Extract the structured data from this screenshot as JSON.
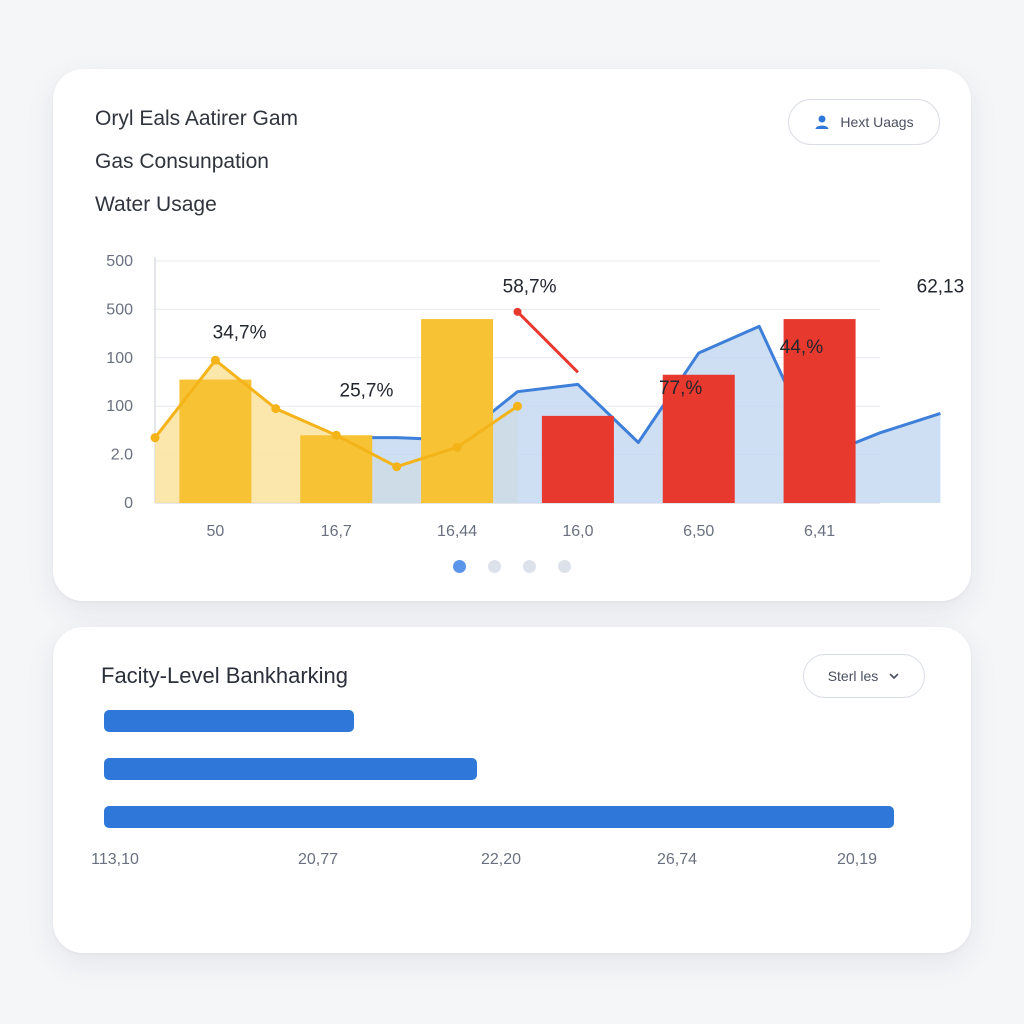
{
  "top_card": {
    "legend": [
      "Oryl Eals Aatirer Gam",
      "Gas Consunpation",
      "Water Usage"
    ],
    "pill_label": "Hext Uaags",
    "pill_icon": "user-icon",
    "pagination": {
      "count": 4,
      "active": 0
    }
  },
  "colors": {
    "yellow": "#f7c234",
    "yellow_light": "#fbe3a3",
    "red": "#e8392e",
    "blue": "#3d7fd9",
    "blue_light": "#c5d9f2",
    "accent": "#5b95ea"
  },
  "chart_data": {
    "type": "bar",
    "title": "",
    "y_ticks": [
      "500",
      "500",
      "100",
      "100",
      "2.0",
      "0"
    ],
    "ylim": [
      0,
      500
    ],
    "categories": [
      "50",
      "16,7",
      "16,44",
      "16,0",
      "6,50",
      "6,41"
    ],
    "series": [
      {
        "name": "Oryl Eals Aatirer Gam",
        "color": "#f7c234",
        "values": [
          255,
          140,
          380,
          null,
          null,
          null
        ]
      },
      {
        "name": "Gas Consunpation",
        "color": "#e8392e",
        "values": [
          null,
          null,
          null,
          180,
          265,
          380
        ]
      }
    ],
    "line_series": [
      {
        "name": "Oryl Eals Aatirer Gam trend",
        "color": "#f7c234",
        "x": [
          -0.5,
          0,
          0.5,
          1,
          1.5,
          2,
          2.5
        ],
        "y": [
          135,
          295,
          195,
          140,
          75,
          115,
          200
        ]
      },
      {
        "name": "Gas Consunpation trend",
        "color": "#e8392e",
        "x": [
          2.5,
          3.0
        ],
        "y": [
          395,
          270
        ]
      },
      {
        "name": "Water Usage",
        "color": "#3d7fd9",
        "x": [
          1,
          1.5,
          2,
          2.5,
          3,
          3.5,
          4,
          4.5,
          5,
          5.5,
          6
        ],
        "y": [
          135,
          135,
          130,
          230,
          245,
          125,
          310,
          365,
          95,
          145,
          185
        ]
      }
    ],
    "data_labels": [
      {
        "text": "34,7%",
        "x": 0.2,
        "y": 340
      },
      {
        "text": "25,7%",
        "x": 1.25,
        "y": 220
      },
      {
        "text": "58,7%",
        "x": 2.6,
        "y": 435
      },
      {
        "text": "77,%",
        "x": 3.85,
        "y": 225
      },
      {
        "text": "44,%",
        "x": 4.85,
        "y": 310
      },
      {
        "text": "62,13",
        "x": 6.0,
        "y": 435
      }
    ]
  },
  "bottom_card": {
    "title": "Facity-Level Bankharking",
    "pill_label": "Sterl les",
    "bars": [
      {
        "fraction": 0.317
      },
      {
        "fraction": 0.472
      },
      {
        "fraction": 1.0
      }
    ],
    "axis_labels": [
      "113,10",
      "20,77",
      "22,20",
      "26,74",
      "20,19"
    ]
  }
}
